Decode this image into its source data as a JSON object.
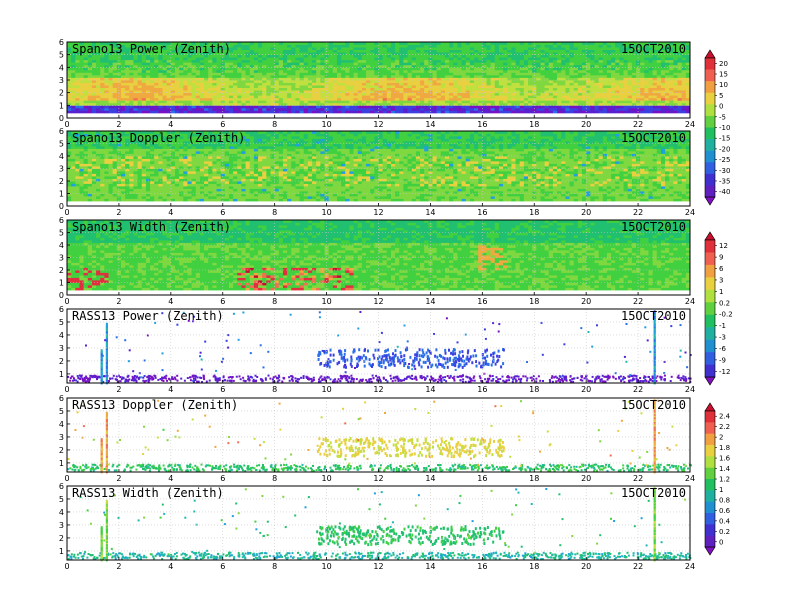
{
  "chart_data": [
    {
      "type": "heatmap",
      "title": "Spano13 Power (Zenith)",
      "date": "15OCT2010",
      "x_ticks": [
        0,
        2,
        4,
        6,
        8,
        10,
        12,
        14,
        16,
        18,
        20,
        22,
        24
      ],
      "y_ticks": [
        0,
        1,
        2,
        3,
        4,
        5,
        6
      ],
      "xlim": [
        0,
        24
      ],
      "ylim": [
        0,
        6
      ],
      "pattern": "continuous_power",
      "colorbar_group": "power"
    },
    {
      "type": "heatmap",
      "title": "Spano13 Doppler (Zenith)",
      "date": "15OCT2010",
      "x_ticks": [
        0,
        2,
        4,
        6,
        8,
        10,
        12,
        14,
        16,
        18,
        20,
        22,
        24
      ],
      "y_ticks": [
        0,
        1,
        2,
        3,
        4,
        5,
        6
      ],
      "xlim": [
        0,
        24
      ],
      "ylim": [
        0,
        6
      ],
      "pattern": "continuous_doppler",
      "colorbar_group": "power"
    },
    {
      "type": "heatmap",
      "title": "Spano13 Width (Zenith)",
      "date": "15OCT2010",
      "x_ticks": [
        0,
        2,
        4,
        6,
        8,
        10,
        12,
        14,
        16,
        18,
        20,
        22,
        24
      ],
      "y_ticks": [
        0,
        1,
        2,
        3,
        4,
        5,
        6
      ],
      "xlim": [
        0,
        24
      ],
      "ylim": [
        0,
        6
      ],
      "pattern": "continuous_width",
      "colorbar_group": "width"
    },
    {
      "type": "heatmap",
      "title": "RASS13 Power (Zenith)",
      "date": "15OCT2010",
      "x_ticks": [
        0,
        2,
        4,
        6,
        8,
        10,
        12,
        14,
        16,
        18,
        20,
        22,
        24
      ],
      "y_ticks": [
        1,
        2,
        3,
        4,
        5,
        6
      ],
      "xlim": [
        0,
        24
      ],
      "ylim": [
        0.3,
        6
      ],
      "pattern": "rass_power",
      "colorbar_group": "width"
    },
    {
      "type": "heatmap",
      "title": "RASS13 Doppler (Zenith)",
      "date": "15OCT2010",
      "x_ticks": [
        0,
        2,
        4,
        6,
        8,
        10,
        12,
        14,
        16,
        18,
        20,
        22,
        24
      ],
      "y_ticks": [
        1,
        2,
        3,
        4,
        5,
        6
      ],
      "xlim": [
        0,
        24
      ],
      "ylim": [
        0.3,
        6
      ],
      "pattern": "rass_doppler",
      "colorbar_group": "rass"
    },
    {
      "type": "heatmap",
      "title": "RASS13 Width (Zenith)",
      "date": "15OCT2010",
      "x_ticks": [
        0,
        2,
        4,
        6,
        8,
        10,
        12,
        14,
        16,
        18,
        20,
        22,
        24
      ],
      "y_ticks": [
        1,
        2,
        3,
        4,
        5,
        6
      ],
      "xlim": [
        0,
        24
      ],
      "ylim": [
        0.3,
        6
      ],
      "pattern": "rass_width",
      "colorbar_group": "rass"
    }
  ],
  "colorbars": [
    {
      "name": "power",
      "labels": [
        "20",
        "15",
        "10",
        "5",
        "0",
        "-5",
        "-10",
        "-15",
        "-20",
        "-25",
        "-30",
        "-35",
        "-40"
      ],
      "colors": [
        "#c8102e",
        "#e0303a",
        "#f06050",
        "#f0a040",
        "#e8d040",
        "#b0e040",
        "#60d040",
        "#20c060",
        "#20b0a0",
        "#2090d0",
        "#3060e0",
        "#4030d0",
        "#6020c0",
        "#8010c0"
      ]
    },
    {
      "name": "width",
      "labels": [
        "12",
        "9",
        "6",
        "3",
        "1",
        "0.2",
        "-0.2",
        "-1",
        "-3",
        "-6",
        "-9",
        "-12"
      ],
      "colors": [
        "#c8102e",
        "#e0303a",
        "#f06050",
        "#f0a040",
        "#e8d040",
        "#b0e040",
        "#60d040",
        "#20c060",
        "#20b0a0",
        "#2090d0",
        "#3060e0",
        "#4030d0",
        "#8010c0"
      ]
    },
    {
      "name": "rass",
      "labels": [
        "2.4",
        "2.2",
        "2",
        "1.8",
        "1.6",
        "1.4",
        "1.2",
        "1",
        "0.8",
        "0.6",
        "0.4",
        "0.2",
        "0"
      ],
      "colors": [
        "#c8102e",
        "#e0303a",
        "#f06050",
        "#f0a040",
        "#e8d040",
        "#b0e040",
        "#60d040",
        "#20c060",
        "#20b0a0",
        "#2090d0",
        "#3060e0",
        "#4030d0",
        "#6020c0",
        "#8010c0"
      ]
    }
  ]
}
